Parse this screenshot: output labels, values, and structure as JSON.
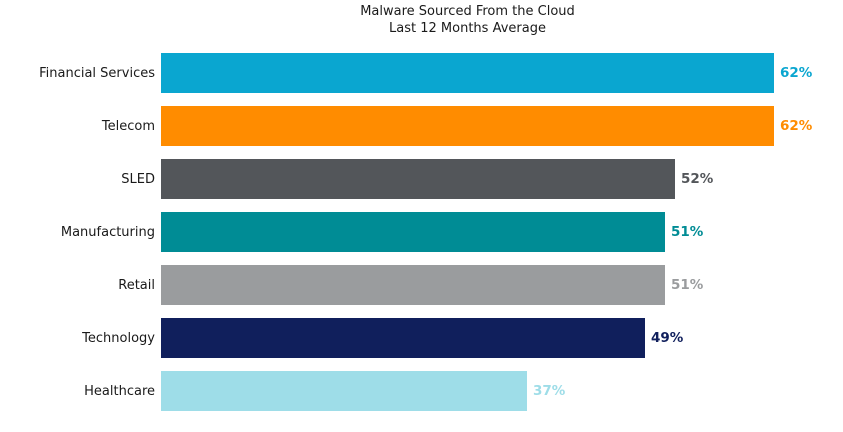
{
  "chart_data": {
    "type": "bar",
    "orientation": "horizontal",
    "title": "Malware Sourced From the Cloud",
    "subtitle": "Last 12 Months Average",
    "categories": [
      "Financial Services",
      "Telecom",
      "SLED",
      "Manufacturing",
      "Retail",
      "Technology",
      "Healthcare"
    ],
    "values": [
      62,
      62,
      52,
      51,
      51,
      49,
      37
    ],
    "value_labels": [
      "62%",
      "62%",
      "52%",
      "51%",
      "51%",
      "49%",
      "37%"
    ],
    "bar_colors": [
      "#0AA6D0",
      "#FF8C00",
      "#53565A",
      "#008C95",
      "#9A9C9E",
      "#101F5C",
      "#9EDDE8"
    ],
    "label_colors": [
      "#0AA6D0",
      "#FF8C00",
      "#53565A",
      "#008C95",
      "#9A9C9E",
      "#101F5C",
      "#9EDDE8"
    ],
    "xlim": [
      0,
      62
    ],
    "grid": false,
    "axes_visible": false,
    "legend": null,
    "title_color": "#1a1a1a",
    "background_color": "#ffffff"
  }
}
